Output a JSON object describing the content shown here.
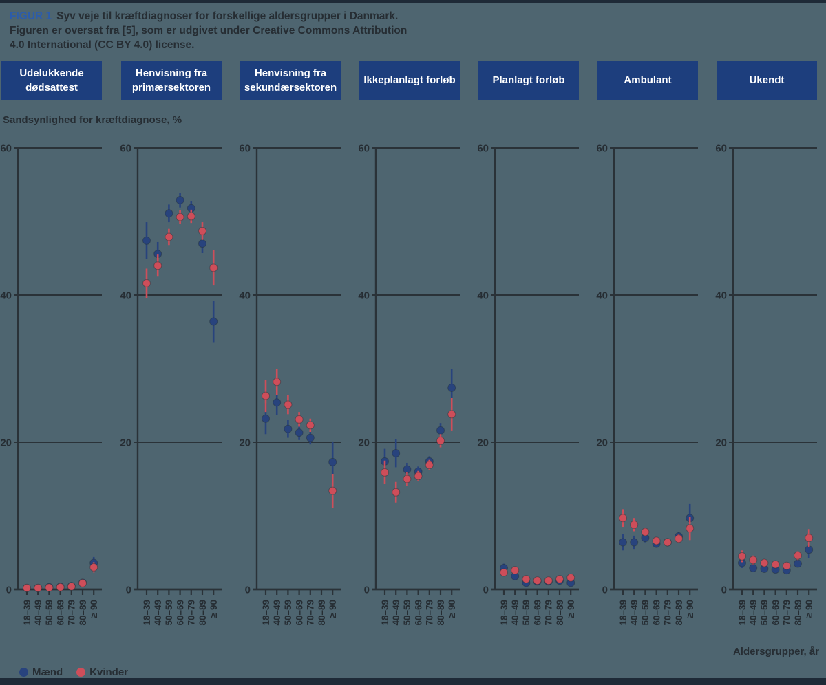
{
  "caption": {
    "label": "FIGUR 1",
    "line1": "Syv veje til kræftdiagnoser for forskellige aldersgrupper i Danmark.",
    "line2": "Figuren er oversat fra [5], som er udgivet under Creative Commons Attribution",
    "line3": "4.0 International (CC BY 4.0) license."
  },
  "axis": {
    "y_label": "Sandsynlighed for kræftdiagnose, %",
    "x_label": "Aldersgrupper, år"
  },
  "legend": [
    {
      "label": "Mænd",
      "color": "#28437d"
    },
    {
      "label": "Kvinder",
      "color": "#ce4e5a"
    }
  ],
  "colors": {
    "background": "#4e6570",
    "panel_header": "#1d3e7d",
    "border_bar": "#1e2a37",
    "axis": "#2a3238",
    "text": "#262d33",
    "figure_label_blue": "#2c5cab",
    "men_blue": "#28437d",
    "women_red": "#ce4e5a"
  },
  "chart_data": {
    "type": "scatter",
    "subtype": "point-estimates-with-error-bars",
    "categories": [
      "18–39",
      "40–49",
      "50–59",
      "60–69",
      "70–79",
      "80–89",
      "≥ 90"
    ],
    "ylim": [
      0,
      60
    ],
    "yticks": [
      0,
      20,
      40,
      60
    ],
    "ylabel": "Sandsynlighed for kræftdiagnose, %",
    "xlabel": "Aldersgrupper, år",
    "grid": "horizontal-lines-at-20-40-60",
    "legend_position": "bottom-left",
    "panels": [
      {
        "title": "Udelukkende dødsattest",
        "series": [
          {
            "name": "Mænd",
            "values": [
              0.2,
              0.2,
              0.3,
              0.35,
              0.45,
              0.9,
              3.6
            ],
            "ci": [
              0.15,
              0.1,
              0.1,
              0.1,
              0.15,
              0.25,
              0.8
            ]
          },
          {
            "name": "Kvinder",
            "values": [
              0.2,
              0.2,
              0.25,
              0.3,
              0.4,
              0.85,
              3.0
            ],
            "ci": [
              0.15,
              0.1,
              0.1,
              0.1,
              0.15,
              0.25,
              0.7
            ]
          }
        ]
      },
      {
        "title": "Henvisning fra primærsektoren",
        "series": [
          {
            "name": "Mænd",
            "values": [
              47.4,
              45.6,
              51.1,
              52.9,
              51.8,
              47.0,
              36.4
            ],
            "ci": [
              2.5,
              1.6,
              1.2,
              1.0,
              1.0,
              1.3,
              2.8
            ]
          },
          {
            "name": "Kvinder",
            "values": [
              41.6,
              44.0,
              47.9,
              50.6,
              50.7,
              48.7,
              43.7
            ],
            "ci": [
              2.0,
              1.5,
              1.1,
              0.9,
              0.9,
              1.2,
              2.4
            ]
          }
        ]
      },
      {
        "title": "Henvisning fra sekundærsektoren",
        "series": [
          {
            "name": "Mænd",
            "values": [
              23.2,
              25.4,
              21.8,
              21.3,
              20.6,
              null,
              17.3
            ],
            "ci": [
              2.1,
              1.7,
              1.2,
              1.0,
              0.9,
              null,
              2.8
            ]
          },
          {
            "name": "Kvinder",
            "values": [
              26.3,
              28.2,
              25.1,
              23.1,
              22.3,
              null,
              13.4
            ],
            "ci": [
              2.2,
              1.8,
              1.3,
              1.0,
              0.9,
              null,
              2.3
            ]
          }
        ]
      },
      {
        "title": "Ikkeplanlagt forløb",
        "series": [
          {
            "name": "Mænd",
            "values": [
              17.4,
              18.5,
              16.3,
              16.0,
              17.4,
              21.6,
              27.4
            ],
            "ci": [
              1.7,
              1.9,
              0.9,
              0.7,
              0.7,
              1.0,
              2.6
            ]
          },
          {
            "name": "Kvinder",
            "values": [
              15.9,
              13.2,
              15.0,
              15.4,
              16.9,
              20.2,
              23.8
            ],
            "ci": [
              1.6,
              1.4,
              0.9,
              0.7,
              0.7,
              0.9,
              2.2
            ]
          }
        ]
      },
      {
        "title": "Planlagt forløb",
        "series": [
          {
            "name": "Mænd",
            "values": [
              2.9,
              1.8,
              0.9,
              1.1,
              1.1,
              1.2,
              0.9
            ],
            "ci": [
              0.6,
              0.4,
              0.2,
              0.2,
              0.2,
              0.3,
              0.4
            ]
          },
          {
            "name": "Kvinder",
            "values": [
              2.3,
              2.6,
              1.4,
              1.2,
              1.2,
              1.4,
              1.6
            ],
            "ci": [
              0.5,
              0.4,
              0.2,
              0.2,
              0.2,
              0.3,
              0.5
            ]
          }
        ]
      },
      {
        "title": "Ambulant",
        "series": [
          {
            "name": "Mænd",
            "values": [
              6.4,
              6.4,
              7.0,
              6.2,
              6.4,
              7.2,
              9.7
            ],
            "ci": [
              1.1,
              0.9,
              0.6,
              0.5,
              0.5,
              0.6,
              1.9
            ]
          },
          {
            "name": "Kvinder",
            "values": [
              9.7,
              8.8,
              7.8,
              6.6,
              6.4,
              6.9,
              8.3
            ],
            "ci": [
              1.2,
              0.9,
              0.6,
              0.5,
              0.5,
              0.6,
              1.6
            ]
          }
        ]
      },
      {
        "title": "Ukendt",
        "series": [
          {
            "name": "Mænd",
            "values": [
              3.6,
              2.9,
              2.8,
              2.7,
              2.6,
              3.5,
              5.4
            ],
            "ci": [
              0.7,
              0.5,
              0.4,
              0.4,
              0.4,
              0.5,
              1.1
            ]
          },
          {
            "name": "Kvinder",
            "values": [
              4.5,
              4.0,
              3.6,
              3.4,
              3.2,
              4.6,
              7.0
            ],
            "ci": [
              0.8,
              0.6,
              0.5,
              0.4,
              0.4,
              0.6,
              1.2
            ]
          }
        ]
      }
    ]
  }
}
